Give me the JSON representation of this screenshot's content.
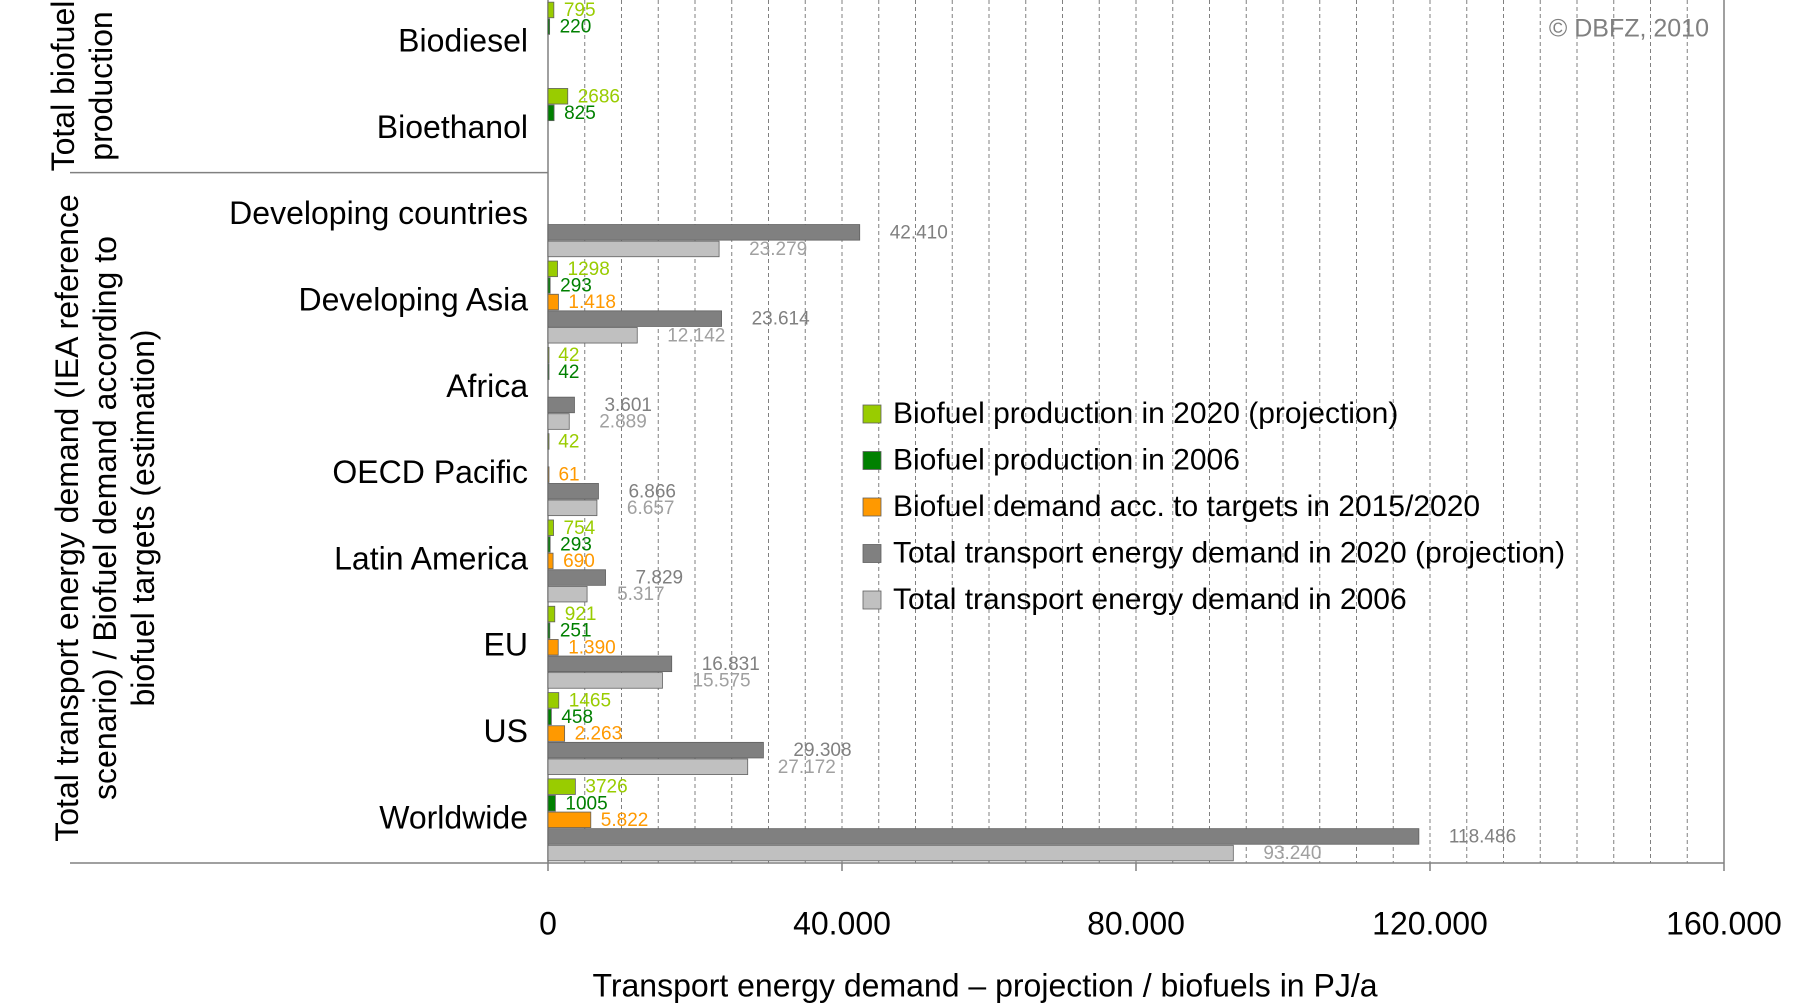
{
  "chart_data": {
    "type": "hbar",
    "xlabel": "Transport energy demand – projection / biofuels in PJ/a",
    "annotation": "© DBFZ, 2010",
    "groups": [
      {
        "label": "Total biofuel production",
        "categories": [
          0,
          1
        ]
      },
      {
        "label": "Total transport energy demand (IEA reference scenario) / Biofuel demand according to biofuel targets (estimation)",
        "categories": [
          2,
          9
        ]
      }
    ],
    "categories": [
      "Biodiesel",
      "Bioethanol",
      "Developing countries",
      "Developing Asia",
      "Africa",
      "OECD Pacific",
      "Latin America",
      "EU",
      "US",
      "Worldwide"
    ],
    "series": [
      {
        "name": "Biofuel production in 2020 (projection)",
        "color": "#99cc00",
        "values": [
          795,
          2686,
          null,
          1298,
          42,
          42,
          754,
          921,
          1465,
          3726
        ]
      },
      {
        "name": "Biofuel production in 2006",
        "color": "#008000",
        "values": [
          220,
          825,
          null,
          293,
          42,
          null,
          293,
          251,
          458,
          1005
        ]
      },
      {
        "name": "Biofuel demand acc. to targets in 2015/2020",
        "color": "#ff9900",
        "values": [
          null,
          null,
          null,
          1418,
          null,
          61,
          690,
          1390,
          2263,
          5822
        ],
        "value_labels": [
          null,
          null,
          null,
          "1.418",
          null,
          "61",
          "690",
          "1.390",
          "2.263",
          "5.822"
        ]
      },
      {
        "name": "Total transport energy demand in 2020 (projection)",
        "color": "#808080",
        "values": [
          null,
          null,
          42410,
          23614,
          3601,
          6866,
          7829,
          16831,
          29308,
          118486
        ],
        "value_labels": [
          null,
          null,
          "42.410",
          "23.614",
          "3.601",
          "6.866",
          "7.829",
          "16.831",
          "29.308",
          "118.486"
        ]
      },
      {
        "name": "Total transport energy demand in 2006",
        "color": "#c0c0c0",
        "values": [
          null,
          null,
          23279,
          12142,
          2889,
          6657,
          5317,
          15575,
          27172,
          93240
        ],
        "value_labels": [
          null,
          null,
          "23.279",
          "12.142",
          "2.889",
          "6.657",
          "5.317",
          "15.575",
          "27.172",
          "93.240"
        ]
      }
    ],
    "xlim": [
      0,
      160000
    ],
    "xticks": [
      0,
      {
        "value": 40000,
        "label": "40.000"
      },
      {
        "value": 80000,
        "label": "80.000"
      },
      {
        "value": 120000,
        "label": "120.000"
      },
      {
        "value": 160000,
        "label": "160.000"
      }
    ],
    "xminorticks": [
      5000,
      10000,
      15000,
      20000,
      25000,
      30000,
      35000,
      40000,
      45000,
      50000,
      55000,
      60000,
      65000,
      70000,
      75000,
      80000,
      85000,
      90000,
      95000,
      100000,
      105000,
      110000,
      115000,
      120000,
      125000,
      130000,
      135000,
      140000,
      145000,
      150000,
      155000
    ],
    "grid": true,
    "legend": "center"
  }
}
